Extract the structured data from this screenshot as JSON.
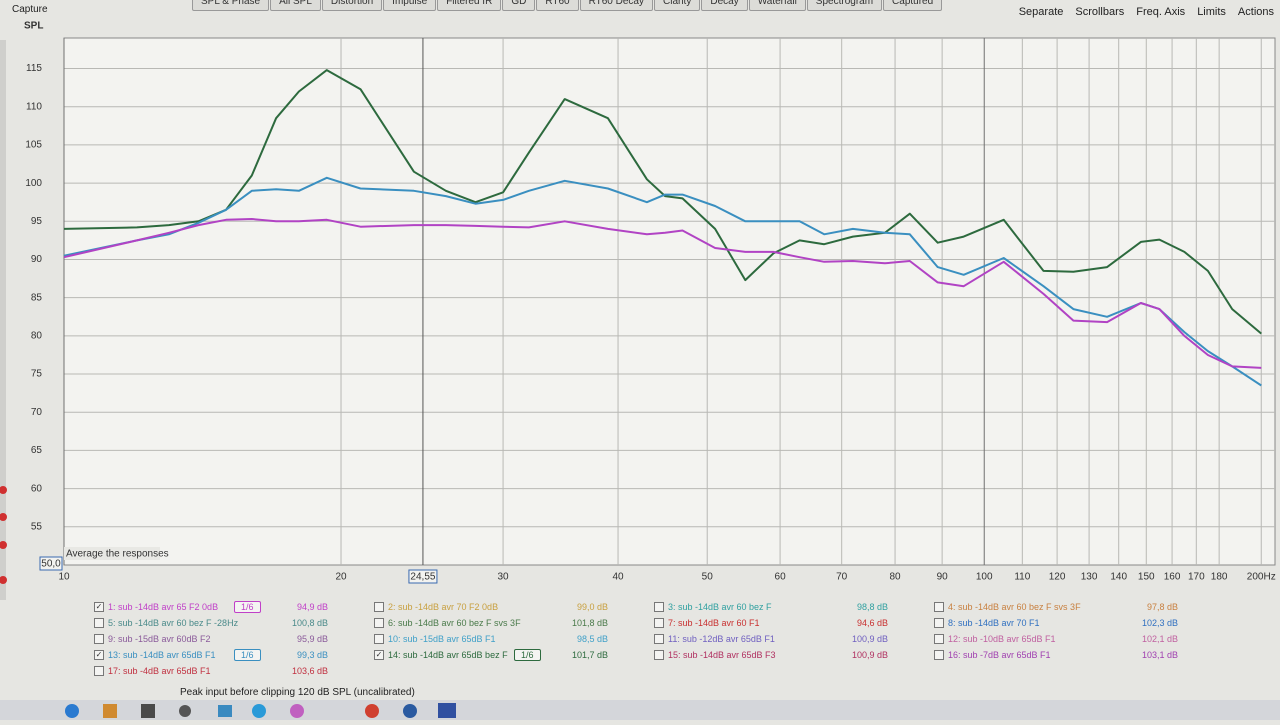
{
  "window_title": "Capture",
  "tabs": [
    "SPL & Phase",
    "All SPL",
    "Distortion",
    "Impulse",
    "Filtered IR",
    "GD",
    "RT60",
    "RT60 Decay",
    "Clarity",
    "Decay",
    "Waterfall",
    "Spectrogram",
    "Captured"
  ],
  "toolbar": [
    "Separate",
    "Scrollbars",
    "Freq. Axis",
    "Limits",
    "Actions"
  ],
  "chart_data": {
    "type": "line",
    "y_label": "SPL",
    "overlay_label": "Average the responses",
    "y_readout": "50,0",
    "cursor": {
      "value": 24.55,
      "label": "24,55"
    },
    "xscale": "log",
    "grid": true,
    "xlim": [
      10,
      207
    ],
    "ylim": [
      50,
      119
    ],
    "xticks": [
      10,
      20,
      30,
      40,
      50,
      60,
      70,
      80,
      90,
      100,
      110,
      120,
      130,
      140,
      150,
      160,
      170,
      180,
      {
        "value": 200,
        "label": "200Hz"
      }
    ],
    "yticks": [
      55,
      60,
      65,
      70,
      75,
      80,
      85,
      90,
      95,
      100,
      105,
      110,
      115
    ],
    "x": [
      10,
      12,
      13,
      14,
      15,
      16,
      17,
      18,
      19.3,
      21,
      24,
      26,
      28,
      30,
      32,
      35,
      39,
      43,
      45,
      47,
      51,
      55,
      59,
      63,
      67,
      72,
      78,
      83,
      89,
      95,
      105,
      116,
      125,
      136,
      148,
      155,
      165,
      175,
      186,
      200
    ],
    "series": [
      {
        "name": "14: sub -14dB avr 65dB bez F",
        "color": "#2d6a3e",
        "values": [
          94,
          94.2,
          94.5,
          95,
          96.5,
          101,
          108.5,
          112,
          114.8,
          112.3,
          101.5,
          99,
          97.5,
          98.8,
          104,
          111,
          108.5,
          100.5,
          98.3,
          98,
          94,
          87.3,
          90.8,
          92.5,
          92,
          93,
          93.5,
          96,
          92.2,
          93,
          95.2,
          88.5,
          88.4,
          89,
          92.3,
          92.6,
          91,
          88.5,
          83.5,
          80.3
        ]
      },
      {
        "name": "13: sub -14dB avr 65dB F1",
        "color": "#3a8fc0",
        "values": [
          90.5,
          92.5,
          93.3,
          94.8,
          96.5,
          99,
          99.2,
          99,
          100.7,
          99.3,
          99,
          98.3,
          97.3,
          97.8,
          99,
          100.3,
          99.3,
          97.5,
          98.5,
          98.5,
          97,
          95,
          95,
          95,
          93.3,
          94,
          93.5,
          93.3,
          89,
          88,
          90.2,
          86.5,
          83.5,
          82.5,
          84.3,
          83.5,
          80.5,
          78,
          76,
          73.5
        ]
      },
      {
        "name": "1: sub -14dB avr 65 F2 0dB",
        "color": "#b143c4",
        "values": [
          90.3,
          92.5,
          93.5,
          94.5,
          95.2,
          95.3,
          95,
          95,
          95.2,
          94.3,
          94.5,
          94.5,
          94.4,
          94.3,
          94.2,
          95,
          94,
          93.3,
          93.5,
          93.8,
          91.5,
          91,
          91,
          90.3,
          89.7,
          89.8,
          89.5,
          89.8,
          87,
          86.5,
          89.7,
          85.5,
          82,
          81.8,
          84.3,
          83.5,
          80,
          77.5,
          76,
          75.8
        ]
      }
    ]
  },
  "measurements": [
    {
      "label": "1: sub -14dB avr 65 F2 0dB",
      "value": "94,9 dB",
      "checked": true,
      "smoothing": "1/6",
      "color": "#c040c8"
    },
    {
      "label": "2: sub -14dB avr 70 F2 0dB",
      "value": "99,0 dB",
      "checked": false,
      "color": "#c8a040"
    },
    {
      "label": "3: sub -14dB avr 60 bez F",
      "value": "98,8 dB",
      "checked": false,
      "color": "#30a0a0"
    },
    {
      "label": "4: sub -14dB avr 60 bez F svs 3F",
      "value": "97,8 dB",
      "checked": false,
      "color": "#c88040"
    },
    {
      "label": "5: sub -14dB avr 60 bez F -28Hz",
      "value": "100,8 dB",
      "checked": false,
      "color": "#4a8a8a"
    },
    {
      "label": "6: sub -14dB avr 60 bez F svs 3F",
      "value": "101,8 dB",
      "checked": false,
      "color": "#4a7a4a"
    },
    {
      "label": "7: sub -14dB avr 60 F1",
      "value": "94,6 dB",
      "checked": false,
      "color": "#c83030"
    },
    {
      "label": "8: sub -14dB avr 70 F1",
      "value": "102,3 dB",
      "checked": false,
      "color": "#3070c0"
    },
    {
      "label": "9: sub -15dB avr 60dB F2",
      "value": "95,9 dB",
      "checked": false,
      "color": "#8a5a9a"
    },
    {
      "label": "10: sub -15dB avr 65dB F1",
      "value": "98,5 dB",
      "checked": false,
      "color": "#40a0c8"
    },
    {
      "label": "11: sub -12dB avr 65dB F1",
      "value": "100,9 dB",
      "checked": false,
      "color": "#7060c0"
    },
    {
      "label": "12: sub -10dB avr 65dB F1",
      "value": "102,1 dB",
      "checked": false,
      "color": "#c060a0"
    },
    {
      "label": "13: sub -14dB avr 65dB F1",
      "value": "99,3 dB",
      "checked": true,
      "smoothing": "1/6",
      "color": "#3a8fc0"
    },
    {
      "label": "14: sub -14dB avr 65dB bez F",
      "value": "101,7 dB",
      "checked": true,
      "smoothing": "1/6",
      "color": "#2d6a3e"
    },
    {
      "label": "15: sub -14dB avr 65dB F3",
      "value": "100,9 dB",
      "checked": false,
      "color": "#b03060"
    },
    {
      "label": "16: sub -7dB avr 65dB F1",
      "value": "103,1 dB",
      "checked": false,
      "color": "#a040b0"
    },
    {
      "label": "17: sub -4dB avr 65dB F1",
      "value": "103,6 dB",
      "checked": false,
      "color": "#c03040"
    }
  ],
  "status": "Peak input before clipping 120 dB SPL (uncalibrated)"
}
